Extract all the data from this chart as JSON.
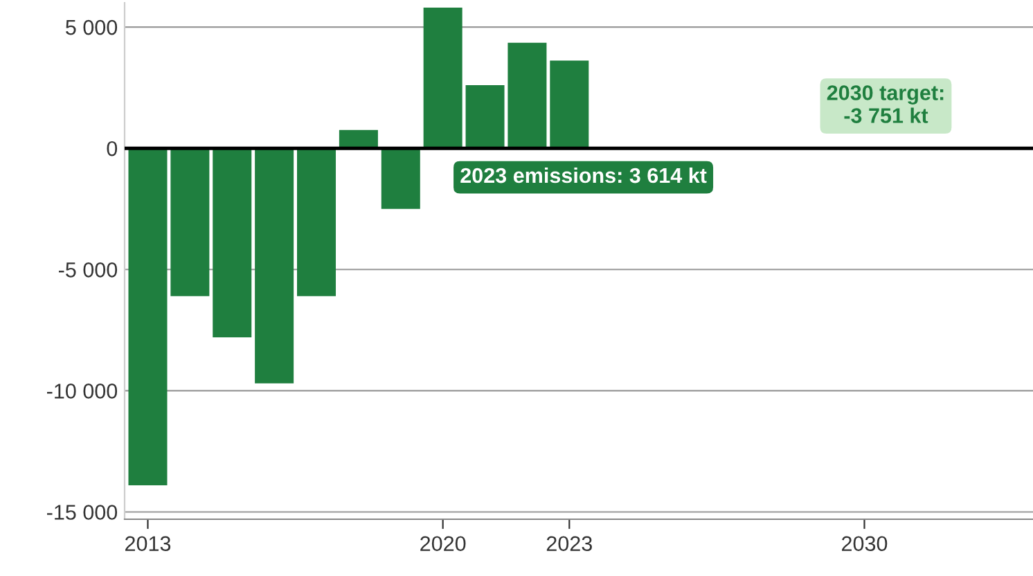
{
  "chart_data": {
    "type": "bar",
    "x": [
      2013,
      2014,
      2015,
      2016,
      2017,
      2018,
      2019,
      2020,
      2021,
      2022,
      2023
    ],
    "values": [
      -13900,
      -6100,
      -7800,
      -9700,
      -6100,
      750,
      -2500,
      5800,
      2600,
      4350,
      3614
    ],
    "color": "#1f7f3f",
    "xlim": [
      2012.45,
      2034
    ],
    "xticks": [
      2013,
      2020,
      2023,
      2030
    ],
    "ylim": [
      -15300,
      6000
    ],
    "yticks": [
      {
        "value": 5000,
        "label": "5 000"
      },
      0,
      {
        "value": -5000,
        "label": "-5 000"
      },
      {
        "value": -10000,
        "label": "-10 000"
      },
      {
        "value": -15000,
        "label": "-15 000"
      }
    ],
    "grid": "y",
    "ref_lines": [
      {
        "axis": "y",
        "value": 0,
        "color": "#000000"
      }
    ],
    "annotations": [
      "2023 emissions: 3 614 kt",
      "2030 target:\n-3 751 kt"
    ]
  }
}
